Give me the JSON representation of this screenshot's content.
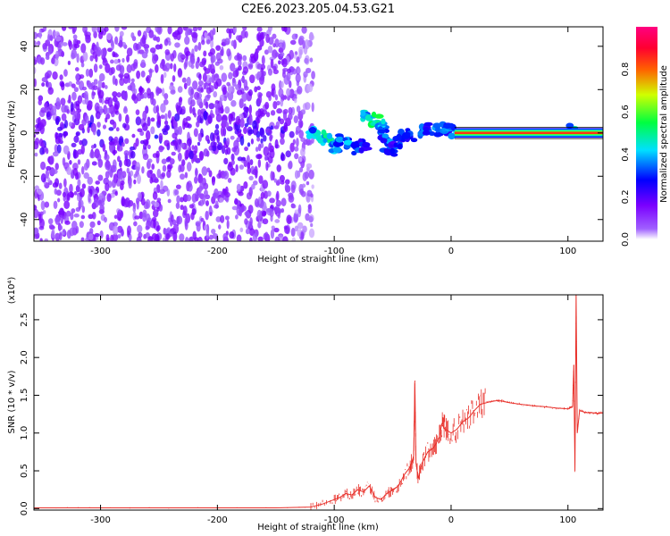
{
  "figure": {
    "title": "C2E6.2023.205.04.53.G21"
  },
  "chart_data": [
    {
      "type": "heatmap",
      "xlabel": "Height of straight line (km)",
      "ylabel": "Frequency (Hz)",
      "xlim": [
        -357,
        130
      ],
      "ylim": [
        -50,
        49
      ],
      "x_ticks": [
        -300,
        -200,
        -100,
        0,
        100
      ],
      "x_tick_labels": [
        "-300",
        "-200",
        "-100",
        "0",
        "100"
      ],
      "y_ticks": [
        -40,
        -20,
        0,
        20,
        40
      ],
      "y_tick_labels": [
        "-40",
        "-20",
        "0",
        "20",
        "40"
      ],
      "colorbar": {
        "label": "Normalized spectral amplitude",
        "range": [
          0.0,
          1.0
        ],
        "ticks": [
          0.0,
          0.2,
          0.4,
          0.6,
          0.8
        ],
        "tick_labels": [
          "0.0",
          "0.2",
          "0.4",
          "0.6",
          "0.8"
        ],
        "colormap": [
          "#ffffff",
          "#8000ff",
          "#0000ff",
          "#00ffff",
          "#00ff00",
          "#ffff00",
          "#ff0000",
          "#ff0080"
        ]
      },
      "features": [
        {
          "name": "noise",
          "x_range": [
            -357,
            -120
          ],
          "freq_range": [
            -50,
            49
          ],
          "amplitude": 0.1
        },
        {
          "name": "scintillation",
          "x_range": [
            -125,
            -40
          ],
          "freq_center": 0,
          "amplitude": 0.3
        },
        {
          "name": "carrier",
          "x_range": [
            5,
            130
          ],
          "freq": 0,
          "amplitude": 0.9
        },
        {
          "name": "spike",
          "x": 103,
          "amplitude": 0.4
        }
      ],
      "grid": false
    },
    {
      "type": "line",
      "xlabel": "Height of straight line (km)",
      "ylabel": "SNR (10 * v/v)",
      "y_scale_label": "(x10⁴)",
      "xlim": [
        -357,
        130
      ],
      "ylim": [
        -0.02,
        2.83
      ],
      "x_ticks": [
        -300,
        -200,
        -100,
        0,
        100
      ],
      "x_tick_labels": [
        "-300",
        "-200",
        "-100",
        "0",
        "100"
      ],
      "y_ticks": [
        0,
        0.5,
        1.0,
        1.5,
        2.0,
        2.5
      ],
      "y_tick_labels": [
        "0.0",
        "0.5",
        "1.0",
        "1.5",
        "2.0",
        "2.5"
      ],
      "line_color": "#e8302a",
      "series": [
        {
          "x": [
            -357,
            -300,
            -250,
            -200,
            -150,
            -120,
            -110,
            -100,
            -95,
            -90,
            -85,
            -80,
            -75,
            -70,
            -65,
            -60,
            -55,
            -50,
            -45,
            -40,
            -35,
            -32,
            -31,
            -30,
            -28,
            -25,
            -20,
            -15,
            -10,
            -8,
            -5,
            0,
            5,
            10,
            15,
            20,
            25,
            30,
            35,
            40,
            45,
            50,
            60,
            70,
            80,
            90,
            100,
            104,
            105,
            106,
            107,
            108,
            110,
            115,
            120,
            125,
            130
          ],
          "y": [
            0.01,
            0.01,
            0.01,
            0.01,
            0.01,
            0.02,
            0.06,
            0.12,
            0.15,
            0.2,
            0.18,
            0.25,
            0.22,
            0.3,
            0.15,
            0.12,
            0.2,
            0.25,
            0.3,
            0.45,
            0.55,
            0.7,
            1.66,
            0.6,
            0.4,
            0.6,
            0.75,
            0.8,
            0.95,
            1.12,
            1.05,
            1.0,
            1.05,
            1.15,
            1.2,
            1.3,
            1.38,
            1.4,
            1.42,
            1.43,
            1.42,
            1.4,
            1.38,
            1.36,
            1.35,
            1.33,
            1.32,
            1.35,
            1.9,
            0.5,
            2.83,
            1.0,
            1.3,
            1.27,
            1.27,
            1.26,
            1.27
          ]
        }
      ],
      "grid": false
    }
  ]
}
